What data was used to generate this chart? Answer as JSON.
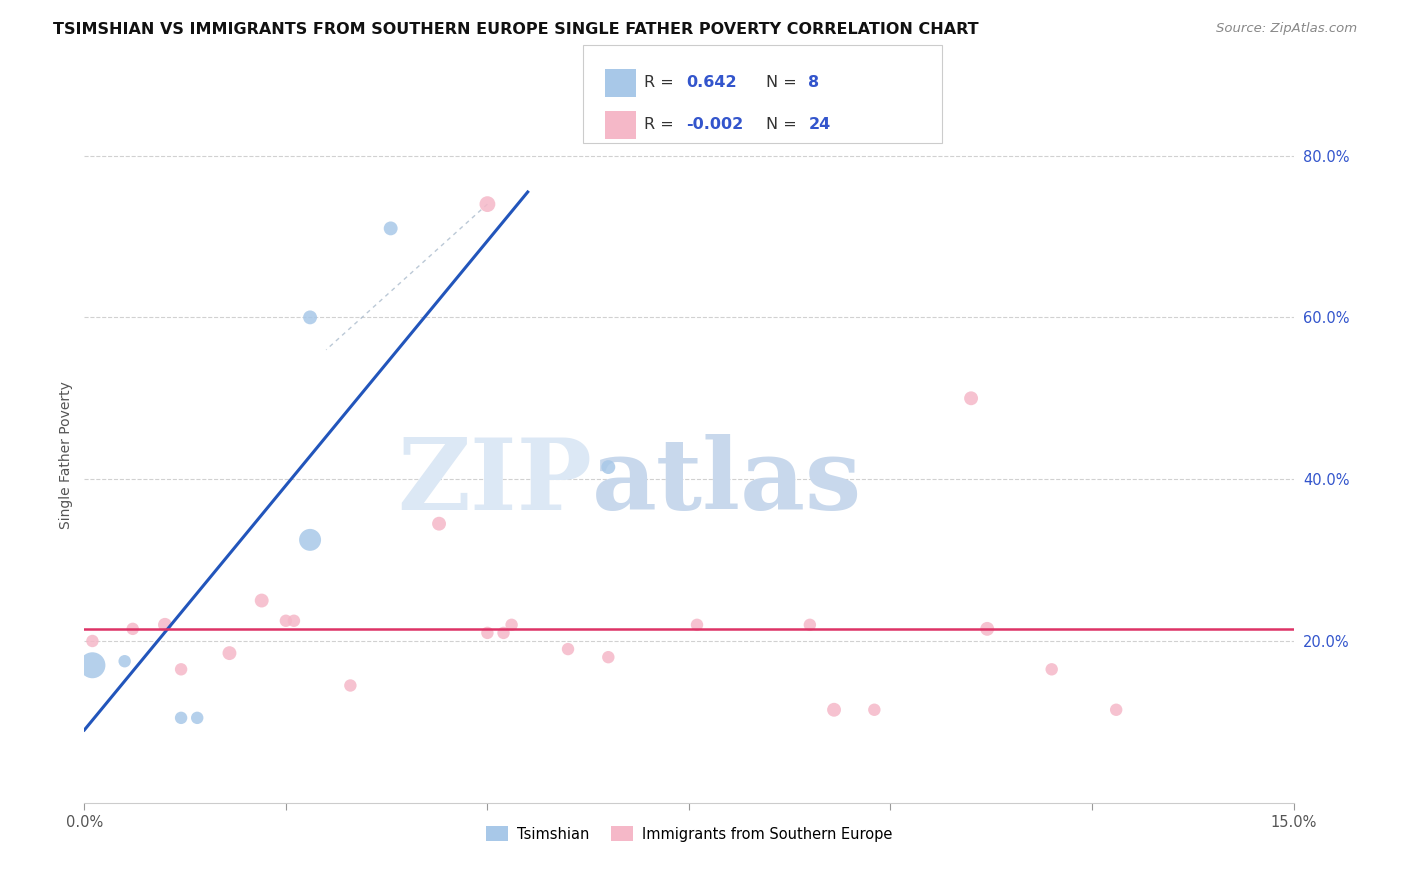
{
  "title": "TSIMSHIAN VS IMMIGRANTS FROM SOUTHERN EUROPE SINGLE FATHER POVERTY CORRELATION CHART",
  "source": "Source: ZipAtlas.com",
  "ylabel": "Single Father Poverty",
  "ylabel_right_values": [
    0.8,
    0.6,
    0.4,
    0.2
  ],
  "xlim": [
    0.0,
    0.15
  ],
  "ylim": [
    0.0,
    0.86
  ],
  "legend_blue_R": "0.642",
  "legend_blue_N": "8",
  "legend_pink_R": "-0.002",
  "legend_pink_N": "24",
  "watermark_zip": "ZIP",
  "watermark_atlas": "atlas",
  "blue_scatter": {
    "x": [
      0.001,
      0.005,
      0.012,
      0.014,
      0.028,
      0.028,
      0.038,
      0.065
    ],
    "y": [
      0.17,
      0.175,
      0.105,
      0.105,
      0.325,
      0.6,
      0.71,
      0.415
    ],
    "sizes": [
      350,
      80,
      80,
      80,
      250,
      100,
      100,
      100
    ]
  },
  "pink_scatter": {
    "x": [
      0.001,
      0.006,
      0.01,
      0.012,
      0.018,
      0.022,
      0.025,
      0.026,
      0.033,
      0.044,
      0.05,
      0.052,
      0.053,
      0.06,
      0.065,
      0.05,
      0.076,
      0.09,
      0.093,
      0.098,
      0.11,
      0.112,
      0.12,
      0.128
    ],
    "y": [
      0.2,
      0.215,
      0.22,
      0.165,
      0.185,
      0.25,
      0.225,
      0.225,
      0.145,
      0.345,
      0.21,
      0.21,
      0.22,
      0.19,
      0.18,
      0.74,
      0.22,
      0.22,
      0.115,
      0.115,
      0.5,
      0.215,
      0.165,
      0.115
    ],
    "sizes": [
      80,
      80,
      100,
      80,
      100,
      100,
      80,
      80,
      80,
      100,
      80,
      80,
      80,
      80,
      80,
      130,
      80,
      80,
      100,
      80,
      100,
      100,
      80,
      80
    ]
  },
  "blue_line_x": [
    0.0,
    0.055
  ],
  "blue_line_y": [
    0.09,
    0.755
  ],
  "pink_line_y": 0.215,
  "grey_dashed_line_x": [
    0.05,
    0.03
  ],
  "grey_dashed_line_y": [
    0.74,
    0.56
  ],
  "background_color": "#ffffff",
  "blue_color": "#a8c8e8",
  "pink_color": "#f5b8c8",
  "blue_line_color": "#2255bb",
  "pink_line_color": "#dd3366",
  "grid_color": "#cccccc",
  "legend_text_dark": "#333333",
  "legend_text_blue": "#3355cc"
}
